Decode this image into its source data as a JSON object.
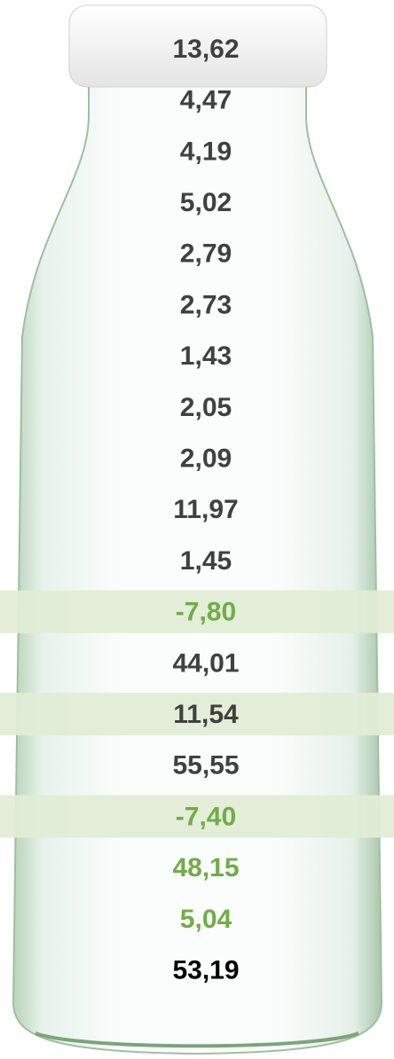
{
  "rows": [
    {
      "text": "13,62",
      "color": "#404040",
      "band": false
    },
    {
      "text": "4,47",
      "color": "#404040",
      "band": false
    },
    {
      "text": "4,19",
      "color": "#404040",
      "band": false
    },
    {
      "text": "5,02",
      "color": "#404040",
      "band": false
    },
    {
      "text": "2,79",
      "color": "#404040",
      "band": false
    },
    {
      "text": "2,73",
      "color": "#404040",
      "band": false
    },
    {
      "text": "1,43",
      "color": "#404040",
      "band": false
    },
    {
      "text": "2,05",
      "color": "#404040",
      "band": false
    },
    {
      "text": "2,09",
      "color": "#404040",
      "band": false
    },
    {
      "text": "11,97",
      "color": "#404040",
      "band": false
    },
    {
      "text": "1,45",
      "color": "#404040",
      "band": false
    },
    {
      "text": "-7,80",
      "color": "#70ad47",
      "band": true
    },
    {
      "text": "44,01",
      "color": "#404040",
      "band": false
    },
    {
      "text": "11,54",
      "color": "#404040",
      "band": true
    },
    {
      "text": "55,55",
      "color": "#404040",
      "band": false
    },
    {
      "text": "-7,40",
      "color": "#70ad47",
      "band": true
    },
    {
      "text": "48,15",
      "color": "#70ad47",
      "band": false
    },
    {
      "text": "5,04",
      "color": "#70ad47",
      "band": false
    },
    {
      "text": "53,19",
      "color": "#000000",
      "band": false
    }
  ]
}
